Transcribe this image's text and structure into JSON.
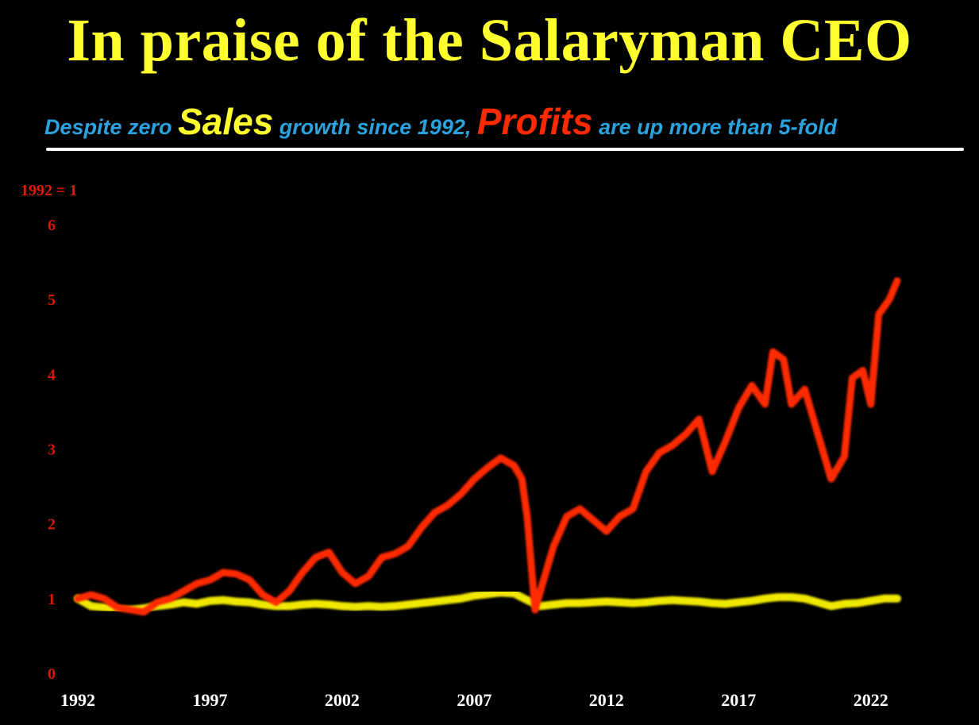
{
  "chart_data": {
    "type": "line",
    "title": "In praise of the Salaryman CEO",
    "subtitle": {
      "part1": "Despite zero ",
      "sales_word": "Sales",
      "part2": " growth since 1992, ",
      "profits_word": "Profits",
      "part3": " are up more than 5-fold"
    },
    "ylabel": "1992 = 1",
    "xlabel": "",
    "ylim": [
      0,
      6
    ],
    "xlim": [
      1992,
      2025
    ],
    "yticks": [
      "0",
      "1",
      "2",
      "3",
      "4",
      "5",
      "6"
    ],
    "xticks": [
      "1992",
      "1997",
      "2002",
      "2007",
      "2012",
      "2017",
      "2022"
    ],
    "grid": false,
    "colors": {
      "background": "#000000",
      "profits": "#ff2a00",
      "sales": "#f0e800",
      "title": "#ffff2e",
      "subtitle_text": "#2aa3de",
      "rule": "#ffffff"
    },
    "series": [
      {
        "name": "Profits",
        "points": [
          [
            1992.0,
            1.0
          ],
          [
            1992.5,
            1.05
          ],
          [
            1993.0,
            1.0
          ],
          [
            1993.5,
            0.88
          ],
          [
            1994.0,
            0.85
          ],
          [
            1994.5,
            0.82
          ],
          [
            1995.0,
            0.95
          ],
          [
            1995.5,
            1.0
          ],
          [
            1996.0,
            1.1
          ],
          [
            1996.5,
            1.2
          ],
          [
            1997.0,
            1.25
          ],
          [
            1997.5,
            1.35
          ],
          [
            1998.0,
            1.33
          ],
          [
            1998.5,
            1.25
          ],
          [
            1999.0,
            1.05
          ],
          [
            1999.5,
            0.95
          ],
          [
            2000.0,
            1.1
          ],
          [
            2000.5,
            1.35
          ],
          [
            2001.0,
            1.55
          ],
          [
            2001.5,
            1.62
          ],
          [
            2002.0,
            1.35
          ],
          [
            2002.5,
            1.2
          ],
          [
            2003.0,
            1.3
          ],
          [
            2003.5,
            1.55
          ],
          [
            2004.0,
            1.6
          ],
          [
            2004.5,
            1.7
          ],
          [
            2005.0,
            1.95
          ],
          [
            2005.5,
            2.15
          ],
          [
            2006.0,
            2.25
          ],
          [
            2006.5,
            2.4
          ],
          [
            2007.0,
            2.6
          ],
          [
            2007.5,
            2.75
          ],
          [
            2008.0,
            2.88
          ],
          [
            2008.5,
            2.78
          ],
          [
            2008.8,
            2.6
          ],
          [
            2009.0,
            2.1
          ],
          [
            2009.3,
            0.85
          ],
          [
            2009.5,
            1.1
          ],
          [
            2010.0,
            1.7
          ],
          [
            2010.5,
            2.1
          ],
          [
            2011.0,
            2.2
          ],
          [
            2011.5,
            2.05
          ],
          [
            2012.0,
            1.9
          ],
          [
            2012.5,
            2.1
          ],
          [
            2013.0,
            2.2
          ],
          [
            2013.5,
            2.7
          ],
          [
            2014.0,
            2.95
          ],
          [
            2014.5,
            3.05
          ],
          [
            2015.0,
            3.2
          ],
          [
            2015.5,
            3.4
          ],
          [
            2016.0,
            2.7
          ],
          [
            2016.5,
            3.1
          ],
          [
            2017.0,
            3.55
          ],
          [
            2017.5,
            3.85
          ],
          [
            2018.0,
            3.6
          ],
          [
            2018.3,
            4.3
          ],
          [
            2018.7,
            4.2
          ],
          [
            2019.0,
            3.6
          ],
          [
            2019.5,
            3.8
          ],
          [
            2020.0,
            3.2
          ],
          [
            2020.5,
            2.6
          ],
          [
            2021.0,
            2.9
          ],
          [
            2021.3,
            3.95
          ],
          [
            2021.7,
            4.05
          ],
          [
            2022.0,
            3.6
          ],
          [
            2022.3,
            4.8
          ],
          [
            2022.7,
            5.0
          ],
          [
            2023.0,
            5.25
          ]
        ]
      },
      {
        "name": "Sales",
        "points": [
          [
            1992.0,
            1.0
          ],
          [
            1992.5,
            0.9
          ],
          [
            1993.0,
            0.88
          ],
          [
            1993.5,
            0.85
          ],
          [
            1994.0,
            0.85
          ],
          [
            1994.5,
            0.87
          ],
          [
            1995.0,
            0.9
          ],
          [
            1995.5,
            0.92
          ],
          [
            1996.0,
            0.95
          ],
          [
            1996.5,
            0.93
          ],
          [
            1997.0,
            0.97
          ],
          [
            1997.5,
            0.98
          ],
          [
            1998.0,
            0.96
          ],
          [
            1998.5,
            0.95
          ],
          [
            1999.0,
            0.92
          ],
          [
            1999.5,
            0.9
          ],
          [
            2000.0,
            0.9
          ],
          [
            2000.5,
            0.92
          ],
          [
            2001.0,
            0.93
          ],
          [
            2001.5,
            0.92
          ],
          [
            2002.0,
            0.9
          ],
          [
            2002.5,
            0.89
          ],
          [
            2003.0,
            0.9
          ],
          [
            2003.5,
            0.89
          ],
          [
            2004.0,
            0.9
          ],
          [
            2004.5,
            0.92
          ],
          [
            2005.0,
            0.94
          ],
          [
            2005.5,
            0.96
          ],
          [
            2006.0,
            0.98
          ],
          [
            2006.5,
            1.0
          ],
          [
            2007.0,
            1.04
          ],
          [
            2007.5,
            1.06
          ],
          [
            2008.0,
            1.08
          ],
          [
            2008.5,
            1.07
          ],
          [
            2009.0,
            0.98
          ],
          [
            2009.5,
            0.9
          ],
          [
            2010.0,
            0.92
          ],
          [
            2010.5,
            0.94
          ],
          [
            2011.0,
            0.94
          ],
          [
            2011.5,
            0.95
          ],
          [
            2012.0,
            0.96
          ],
          [
            2012.5,
            0.95
          ],
          [
            2013.0,
            0.94
          ],
          [
            2013.5,
            0.95
          ],
          [
            2014.0,
            0.97
          ],
          [
            2014.5,
            0.98
          ],
          [
            2015.0,
            0.97
          ],
          [
            2015.5,
            0.96
          ],
          [
            2016.0,
            0.94
          ],
          [
            2016.5,
            0.93
          ],
          [
            2017.0,
            0.95
          ],
          [
            2017.5,
            0.97
          ],
          [
            2018.0,
            1.0
          ],
          [
            2018.5,
            1.02
          ],
          [
            2019.0,
            1.02
          ],
          [
            2019.5,
            1.0
          ],
          [
            2020.0,
            0.95
          ],
          [
            2020.5,
            0.9
          ],
          [
            2021.0,
            0.93
          ],
          [
            2021.5,
            0.94
          ],
          [
            2022.0,
            0.97
          ],
          [
            2022.5,
            1.0
          ],
          [
            2023.0,
            1.0
          ]
        ]
      }
    ]
  }
}
